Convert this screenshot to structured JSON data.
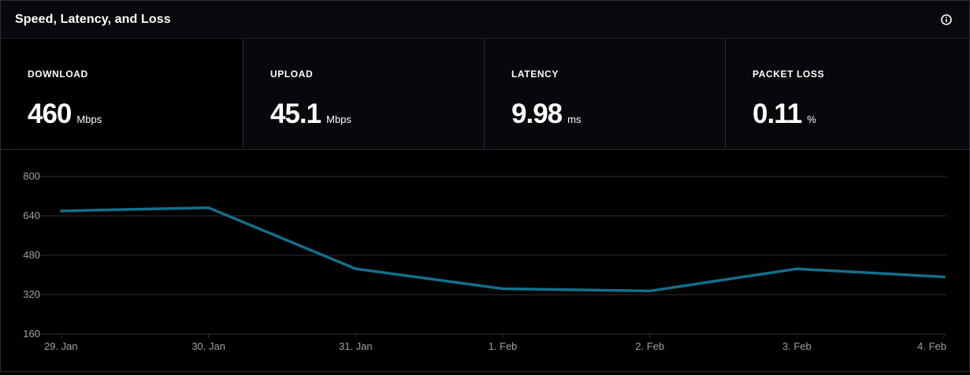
{
  "panel": {
    "title": "Speed, Latency, and Loss",
    "info_icon": "info-circle-icon"
  },
  "metrics": [
    {
      "label": "DOWNLOAD",
      "value": "460",
      "unit": "Mbps"
    },
    {
      "label": "UPLOAD",
      "value": "45.1",
      "unit": "Mbps"
    },
    {
      "label": "LATENCY",
      "value": "9.98",
      "unit": "ms"
    },
    {
      "label": "PACKET LOSS",
      "value": "0.11",
      "unit": "%"
    }
  ],
  "colors": {
    "line": "#13708c",
    "grid": "#2b2f3a",
    "tick_text": "#9aa0a8"
  },
  "chart_data": {
    "type": "line",
    "title": "",
    "xlabel": "",
    "ylabel": "",
    "x": [
      "29. Jan",
      "30. Jan",
      "31. Jan",
      "1. Feb",
      "2. Feb",
      "3. Feb",
      "4. Feb"
    ],
    "series": [
      {
        "values": [
          660,
          673,
          425,
          344,
          335,
          425,
          392
        ]
      }
    ],
    "yticks": [
      800,
      640,
      480,
      320,
      160
    ],
    "ylim": [
      160,
      800
    ],
    "grid": true,
    "legend": "none"
  }
}
